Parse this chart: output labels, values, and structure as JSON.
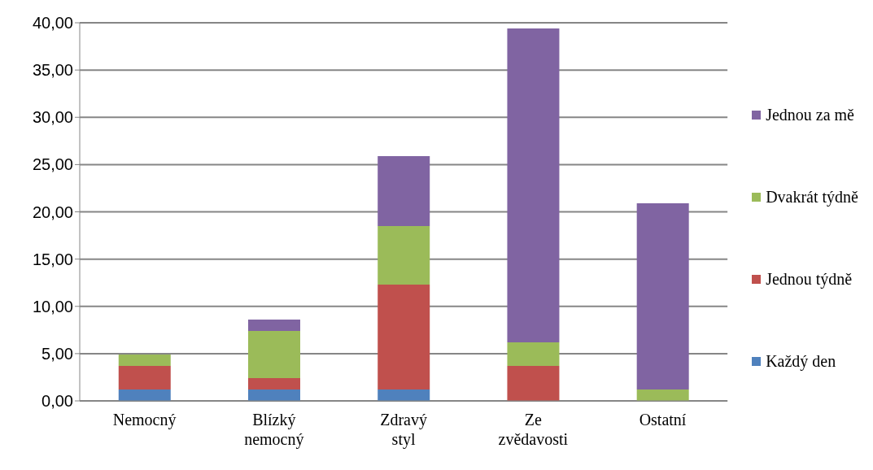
{
  "chart_data": {
    "type": "bar",
    "stacked": true,
    "categories": [
      "Nemocný",
      "Blízký nemocný",
      "Zdravý styl",
      "Ze zvědavosti",
      "Ostatní"
    ],
    "series": [
      {
        "name": "Každý den",
        "color": "#4f81bd",
        "values": [
          1.2,
          1.2,
          1.2,
          0,
          0
        ]
      },
      {
        "name": "Jednou týdně",
        "color": "#c0504d",
        "values": [
          2.5,
          1.2,
          11.1,
          3.7,
          0
        ]
      },
      {
        "name": "Dvakrát týdně",
        "color": "#9bbb59",
        "values": [
          1.2,
          5.0,
          6.2,
          2.5,
          1.2
        ]
      },
      {
        "name": "Jednou za mě",
        "color": "#8064a2",
        "values": [
          0,
          1.2,
          7.4,
          33.2,
          19.7
        ]
      }
    ],
    "ylim": [
      0,
      40
    ],
    "yticks": [
      {
        "value": 0,
        "label": "0,00"
      },
      {
        "value": 5,
        "label": "5,00"
      },
      {
        "value": 10,
        "label": "10,00"
      },
      {
        "value": 15,
        "label": "15,00"
      },
      {
        "value": 20,
        "label": "20,00"
      },
      {
        "value": 25,
        "label": "25,00"
      },
      {
        "value": 30,
        "label": "30,00"
      },
      {
        "value": 35,
        "label": "35,00"
      },
      {
        "value": 40,
        "label": "40,00"
      }
    ],
    "grid": "y",
    "legend": "right"
  }
}
